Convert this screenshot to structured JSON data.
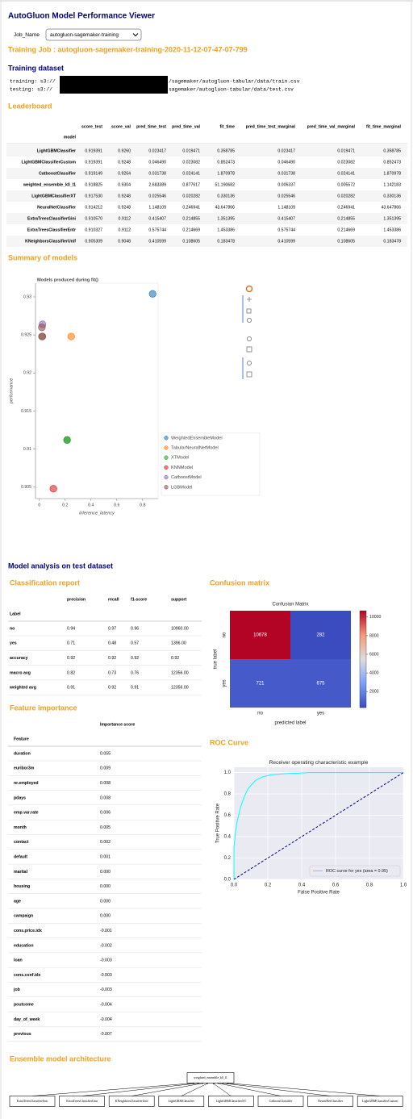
{
  "header": {
    "title": "AutoGluon Model Performance Viewer",
    "job_label": "Job_Name",
    "job_value": "autogluon-sagemaker-training"
  },
  "training_job": "Training Job : autogluon-sagemaker-training-2020-11-12-07-47-07-799",
  "dataset": {
    "title": "Training dataset",
    "lines": [
      {
        "prefix": "training: s3://",
        "suffix": "/sagemaker/autogluon-tabular/data/train.csv"
      },
      {
        "prefix": "testing: s3://",
        "suffix": "sagemaker/autogluon-tabular/data/test.csv"
      }
    ]
  },
  "leaderboard": {
    "title": "Leaderboard",
    "index_name": "model",
    "columns": [
      "score_test",
      "score_val",
      "pred_time_test",
      "pred_time_val",
      "fit_time",
      "pred_time_test_marginal",
      "pred_time_val_marginal",
      "fit_time_marginal"
    ],
    "rows": [
      [
        "LightGBMClassifier",
        "0.919391",
        "0.9260",
        "0.023417",
        "0.019471",
        "0.358785",
        "0.023417",
        "0.019471",
        "0.358785"
      ],
      [
        "LightGBMClassifierCustom",
        "0.919391",
        "0.9248",
        "0.046490",
        "0.023082",
        "0.852473",
        "0.046490",
        "0.023082",
        "0.852473"
      ],
      [
        "CatboostClassifier",
        "0.919149",
        "0.9264",
        "0.031738",
        "0.024141",
        "1.870978",
        "0.031738",
        "0.024141",
        "1.870978"
      ],
      [
        "weighted_ensemble_k0_l1",
        "0.918825",
        "0.9304",
        "2.683389",
        "0.877617",
        "51.190682",
        "0.006337",
        "0.005572",
        "1.142183"
      ],
      [
        "LightGBMClassifierXT",
        "0.917530",
        "0.9248",
        "0.025546",
        "0.020282",
        "0.330136",
        "0.025546",
        "0.020282",
        "0.330136"
      ],
      [
        "NeuralNetClassifier",
        "0.914212",
        "0.9248",
        "1.148109",
        "0.246941",
        "43.647866",
        "1.148109",
        "0.246941",
        "43.647866"
      ],
      [
        "ExtraTreesClassifierGini",
        "0.910570",
        "0.9112",
        "0.415407",
        "0.214855",
        "1.351395",
        "0.415407",
        "0.214855",
        "1.351395"
      ],
      [
        "ExtraTreesClassifierEntr",
        "0.910327",
        "0.9112",
        "0.575744",
        "0.214669",
        "1.453386",
        "0.575744",
        "0.214669",
        "1.453386"
      ],
      [
        "KNeighborsClassifierUnif",
        "0.905309",
        "0.9048",
        "0.410599",
        "0.108605",
        "0.183478",
        "0.410599",
        "0.108605",
        "0.183478"
      ]
    ]
  },
  "summary_title": "Summary of models",
  "analysis_title": "Model analysis on test dataset",
  "classification_report": {
    "title": "Classification report",
    "index_name": "Label",
    "columns": [
      "precision",
      "recall",
      "f1-score",
      "support"
    ],
    "rows": [
      [
        "no",
        "0.94",
        "0.97",
        "0.96",
        "10960.00"
      ],
      [
        "yes",
        "0.71",
        "0.48",
        "0.57",
        "1396.00"
      ],
      [
        "accuracy",
        "0.92",
        "0.92",
        "0.92",
        "0.92"
      ],
      [
        "macro avg",
        "0.82",
        "0.73",
        "0.76",
        "12356.00"
      ],
      [
        "weighted avg",
        "0.91",
        "0.92",
        "0.91",
        "12356.00"
      ]
    ]
  },
  "confusion_title": "Confusion matrix",
  "feature_importance": {
    "title": "Feature importance",
    "column": "Importance score",
    "index_name": "Feature",
    "rows": [
      [
        "duration",
        "0.055"
      ],
      [
        "euribor3m",
        "0.009"
      ],
      [
        "nr.employed",
        "0.008"
      ],
      [
        "pdays",
        "0.008"
      ],
      [
        "emp.var.rate",
        "0.006"
      ],
      [
        "month",
        "0.005"
      ],
      [
        "contact",
        "0.002"
      ],
      [
        "default",
        "0.001"
      ],
      [
        "marital",
        "0.000"
      ],
      [
        "housing",
        "0.000"
      ],
      [
        "age",
        "0.000"
      ],
      [
        "campaign",
        "0.000"
      ],
      [
        "cons.price.idx",
        "-0.001"
      ],
      [
        "education",
        "-0.002"
      ],
      [
        "loan",
        "-0.003"
      ],
      [
        "cons.conf.idx",
        "-0.003"
      ],
      [
        "job",
        "-0.003"
      ],
      [
        "poutcome",
        "-0.004"
      ],
      [
        "day_of_week",
        "-0.004"
      ],
      [
        "previous",
        "-0.007"
      ]
    ]
  },
  "roc_title": "ROC Curve",
  "ensemble": {
    "title": "Ensemble model architecture",
    "root": "weighted_ensemble_k0_l1",
    "children": [
      "ExtraTreesClassifierEntr",
      "ExtraTreesClassifierGini",
      "KNeighborsClassifierUnif",
      "LightGBMClassifier",
      "LightGBMClassifierXT",
      "CatboostClassifier",
      "NeuralNetClassifier",
      "LightGBMClassifierCustom"
    ]
  },
  "chart_data": [
    {
      "type": "scatter",
      "title": "Models produced during fit()",
      "x_label": "inference_latency",
      "y_label": "performance",
      "xlim": [
        -0.03,
        0.92
      ],
      "ylim": [
        0.9035,
        0.9318
      ],
      "xticks": [
        0,
        0.2,
        0.4,
        0.6,
        0.8
      ],
      "yticks": [
        0.905,
        0.91,
        0.915,
        0.92,
        0.925,
        0.93
      ],
      "legend": "right",
      "series": [
        {
          "name": "WeightedEnsembleModel",
          "color": "#1f77b4",
          "x": [
            0.877617
          ],
          "values": [
            0.9304
          ]
        },
        {
          "name": "TabularNeuralNetModel",
          "color": "#ff7f0e",
          "x": [
            0.246941
          ],
          "values": [
            0.9248
          ]
        },
        {
          "name": "XTModel",
          "color": "#2ca02c",
          "x": [
            0.214855,
            0.214669
          ],
          "values": [
            0.9112,
            0.9112
          ]
        },
        {
          "name": "KNNModel",
          "color": "#d62728",
          "x": [
            0.108605
          ],
          "values": [
            0.9048
          ]
        },
        {
          "name": "CatboostModel",
          "color": "#9467bd",
          "x": [
            0.024141
          ],
          "values": [
            0.9264
          ]
        },
        {
          "name": "LGBModel",
          "color": "#8c564b",
          "x": [
            0.019471,
            0.023082,
            0.020282
          ],
          "values": [
            0.926,
            0.9248,
            0.9248
          ]
        }
      ]
    },
    {
      "type": "heatmap",
      "title": "Confusion Matrix",
      "x_label": "predicted label",
      "y_label": "true label",
      "x_categories": [
        "no",
        "yes"
      ],
      "y_categories": [
        "no",
        "yes"
      ],
      "values": [
        [
          10678,
          282
        ],
        [
          721,
          675
        ]
      ],
      "colormap": "coolwarm",
      "clim": [
        282,
        10678
      ],
      "cticks": [
        2000,
        4000,
        6000,
        8000,
        10000
      ]
    },
    {
      "type": "line",
      "title": "Receiver operating characteristic example",
      "x_label": "False Positive Rate",
      "y_label": "True Positive Rate",
      "xlim": [
        0,
        1
      ],
      "ylim": [
        0,
        1.05
      ],
      "xticks": [
        {
          "value": 0,
          "label": "0.0"
        },
        0.2,
        0.4,
        0.6,
        0.8,
        {
          "value": 1,
          "label": "1.0"
        }
      ],
      "yticks": [
        {
          "value": 0,
          "label": "0.0"
        },
        0.2,
        0.4,
        0.6,
        0.8,
        {
          "value": 1,
          "label": "1.0"
        }
      ],
      "grid": true,
      "legend": "lower right",
      "series": [
        {
          "name": "ROC curve for yes (area = 0.95)",
          "color": "#00ffff",
          "x": [
            0,
            0,
            0.01,
            0.02,
            0.04,
            0.06,
            0.08,
            0.1,
            0.13,
            0.17,
            0.22,
            0.3,
            0.45,
            1
          ],
          "values": [
            0,
            0.3,
            0.45,
            0.55,
            0.68,
            0.77,
            0.84,
            0.88,
            0.93,
            0.96,
            0.98,
            0.99,
            1,
            1
          ]
        },
        {
          "color": "#000080",
          "dash": true,
          "x": [
            0,
            1
          ],
          "values": [
            0,
            1
          ]
        }
      ]
    }
  ]
}
